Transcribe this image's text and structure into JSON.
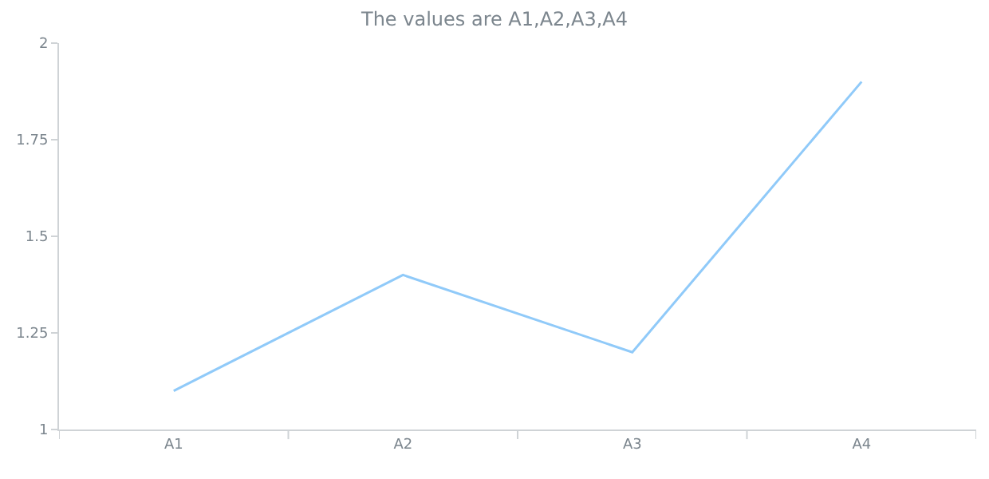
{
  "chart_data": {
    "type": "line",
    "title": "The values are A1,A2,A3,A4",
    "categories": [
      "A1",
      "A2",
      "A3",
      "A4"
    ],
    "series": [
      {
        "color": "#90caf9",
        "values": [
          1.1,
          1.4,
          1.2,
          1.9
        ]
      }
    ],
    "ylim": [
      1,
      2
    ],
    "yticks": [
      1,
      1.25,
      1.5,
      1.75,
      2
    ],
    "marker": "none",
    "line_style": "solid"
  }
}
